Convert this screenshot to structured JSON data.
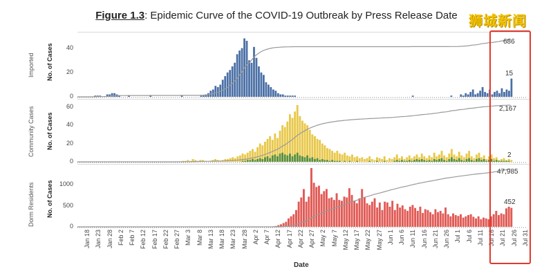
{
  "title": {
    "figure": "Figure 1.3",
    "rest": ": Epidemic Curve of the COVID-19 Outbreak by Press Release Date"
  },
  "watermark": "狮城新闻",
  "xlabel": "Date",
  "x_ticks": [
    "Jan 18",
    "Jan 23",
    "Jan 28",
    "Feb 2",
    "Feb 7",
    "Feb 12",
    "Feb 17",
    "Feb 22",
    "Feb 27",
    "Mar 3",
    "Mar 8",
    "Mar 13",
    "Mar 18",
    "Mar 23",
    "Mar 28",
    "Apr 2",
    "Apr 7",
    "Apr 12",
    "Apr 17",
    "Apr 22",
    "Apr 27",
    "May 2",
    "May 7",
    "May 12",
    "May 17",
    "May 22",
    "May 27",
    "Jun 1",
    "Jun 6",
    "Jun 11",
    "Jun 16",
    "Jun 21",
    "Jun 26",
    "Jul 1",
    "Jul 6",
    "Jul 11",
    "Jul 16",
    "Jul 21",
    "Jul 26",
    "Jul 31"
  ],
  "colors": {
    "imported": "#4a6fa5",
    "community": "#e8c84a",
    "community_linked": "#5b8f3c",
    "dorm": "#e05a55",
    "cumulative": "#999999",
    "highlight": "#e0382c"
  },
  "chart_data": [
    {
      "type": "bar",
      "panel": "Imported",
      "ylabel": "No. of Cases",
      "yticks": [
        0,
        20,
        40
      ],
      "ylim": [
        0,
        50
      ],
      "series": [
        {
          "values_by_day_index": "see x/values"
        }
      ],
      "x_start": "Jan 18",
      "values": [
        0,
        0,
        0,
        0,
        0,
        0,
        0,
        1,
        1,
        1,
        0,
        0,
        2,
        2,
        3,
        3,
        2,
        1,
        0,
        0,
        0,
        1,
        0,
        0,
        0,
        0,
        0,
        0,
        0,
        0,
        1,
        0,
        0,
        0,
        0,
        0,
        0,
        0,
        0,
        0,
        0,
        0,
        0,
        1,
        0,
        0,
        0,
        0,
        0,
        0,
        0,
        1,
        1,
        2,
        3,
        5,
        6,
        9,
        8,
        10,
        14,
        17,
        20,
        22,
        25,
        28,
        35,
        38,
        40,
        48,
        46,
        30,
        28,
        41,
        32,
        25,
        20,
        18,
        12,
        10,
        8,
        6,
        5,
        3,
        2,
        2,
        1,
        1,
        1,
        1,
        1,
        0,
        0,
        0,
        0,
        0,
        0,
        0,
        0,
        0,
        0,
        0,
        0,
        0,
        0,
        0,
        0,
        0,
        0,
        0,
        0,
        0,
        0,
        0,
        0,
        0,
        0,
        0,
        0,
        0,
        0,
        0,
        0,
        0,
        0,
        0,
        0,
        0,
        0,
        0,
        0,
        0,
        0,
        0,
        0,
        0,
        0,
        0,
        0,
        1,
        0,
        0,
        0,
        0,
        0,
        0,
        0,
        0,
        0,
        0,
        0,
        0,
        0,
        0,
        0,
        1,
        0,
        0,
        0,
        2,
        1,
        3,
        2,
        4,
        6,
        2,
        3,
        5,
        8,
        4,
        3,
        6,
        2,
        4,
        5,
        3,
        7,
        4,
        6,
        5,
        15
      ],
      "annotations": [
        {
          "label": "686"
        },
        {
          "label": "15"
        }
      ]
    },
    {
      "type": "bar",
      "panel": "Community Cases",
      "ylabel": "No. of Cases",
      "yticks": [
        0,
        20,
        40,
        60
      ],
      "ylim": [
        0,
        65
      ],
      "series_names": [],
      "unlinked": [
        0,
        0,
        0,
        0,
        0,
        0,
        0,
        0,
        0,
        0,
        0,
        0,
        0,
        0,
        0,
        0,
        0,
        0,
        0,
        0,
        0,
        0,
        0,
        0,
        0,
        0,
        0,
        0,
        0,
        0,
        0,
        0,
        0,
        0,
        0,
        0,
        0,
        0,
        0,
        0,
        0,
        0,
        1,
        1,
        2,
        1,
        3,
        2,
        1,
        2,
        2,
        1,
        0,
        1,
        2,
        3,
        2,
        1,
        2,
        3,
        3,
        4,
        5,
        4,
        6,
        7,
        9,
        8,
        10,
        12,
        14,
        11,
        16,
        20,
        18,
        22,
        25,
        28,
        24,
        31,
        26,
        34,
        40,
        38,
        44,
        52,
        48,
        55,
        62,
        50,
        45,
        42,
        40,
        35,
        30,
        28,
        25,
        24,
        20,
        18,
        15,
        14,
        12,
        10,
        12,
        9,
        8,
        10,
        7,
        6,
        8,
        5,
        6,
        4,
        5,
        3,
        4,
        6,
        3,
        2,
        5,
        4,
        3,
        6,
        2,
        4,
        3,
        5,
        8,
        4,
        6,
        3,
        5,
        7,
        4,
        6,
        8,
        5,
        9,
        6,
        4,
        7,
        5,
        10,
        6,
        8,
        12,
        7,
        5,
        9,
        14,
        8,
        6,
        11,
        7,
        5,
        9,
        12,
        6,
        4,
        8,
        10,
        5,
        7,
        3,
        6,
        8,
        4,
        5,
        2,
        3,
        4,
        2,
        3,
        2
      ],
      "linked": [
        0,
        0,
        0,
        0,
        0,
        0,
        0,
        0,
        0,
        0,
        0,
        0,
        0,
        0,
        0,
        0,
        0,
        0,
        0,
        0,
        0,
        0,
        0,
        0,
        0,
        0,
        0,
        0,
        0,
        0,
        0,
        0,
        0,
        0,
        0,
        0,
        0,
        0,
        0,
        0,
        0,
        0,
        0,
        0,
        0,
        0,
        0,
        0,
        0,
        0,
        0,
        0,
        0,
        0,
        0,
        0,
        0,
        0,
        0,
        0,
        0,
        0,
        0,
        0,
        0,
        0,
        1,
        1,
        2,
        2,
        3,
        2,
        3,
        4,
        3,
        5,
        6,
        4,
        7,
        8,
        6,
        9,
        10,
        8,
        7,
        9,
        6,
        8,
        10,
        7,
        6,
        5,
        7,
        4,
        5,
        3,
        4,
        2,
        3,
        2,
        2,
        1,
        2,
        1,
        1,
        1,
        0,
        1,
        0,
        1,
        0,
        0,
        1,
        0,
        0,
        0,
        0,
        1,
        0,
        0,
        1,
        0,
        0,
        1,
        0,
        0,
        0,
        1,
        2,
        1,
        2,
        1,
        1,
        2,
        1,
        2,
        3,
        2,
        3,
        2,
        1,
        2,
        1,
        3,
        2,
        3,
        4,
        2,
        1,
        3,
        5,
        3,
        2,
        4,
        2,
        1,
        3,
        4,
        2,
        1,
        3,
        4,
        2,
        3,
        1,
        2,
        3,
        1,
        2,
        1,
        1,
        1,
        1,
        1,
        0
      ],
      "annotations": [
        {
          "label": "2,167"
        },
        {
          "label": "2"
        }
      ]
    },
    {
      "type": "bar",
      "panel": "Dorm Residents",
      "ylabel": "No. of Cases",
      "yticks": [
        0,
        500,
        1000
      ],
      "ylim": [
        0,
        1450
      ],
      "values": [
        0,
        0,
        0,
        0,
        0,
        0,
        0,
        0,
        0,
        0,
        0,
        0,
        0,
        0,
        0,
        0,
        0,
        0,
        0,
        0,
        0,
        0,
        0,
        0,
        0,
        0,
        0,
        0,
        0,
        0,
        0,
        0,
        0,
        0,
        0,
        0,
        0,
        0,
        0,
        0,
        0,
        0,
        0,
        0,
        0,
        0,
        0,
        0,
        0,
        0,
        0,
        0,
        0,
        0,
        0,
        0,
        0,
        0,
        0,
        0,
        0,
        0,
        0,
        0,
        0,
        0,
        0,
        0,
        0,
        0,
        0,
        0,
        0,
        0,
        0,
        0,
        0,
        10,
        20,
        40,
        60,
        90,
        120,
        200,
        250,
        300,
        400,
        600,
        700,
        900,
        600,
        720,
        1400,
        1050,
        950,
        980,
        780,
        850,
        900,
        680,
        700,
        640,
        800,
        640,
        620,
        720,
        700,
        920,
        760,
        620,
        560,
        680,
        900,
        700,
        560,
        520,
        600,
        680,
        460,
        580,
        400,
        600,
        580,
        480,
        620,
        400,
        550,
        460,
        510,
        420,
        380,
        480,
        520,
        450,
        380,
        480,
        330,
        420,
        400,
        350,
        300,
        420,
        350,
        380,
        320,
        460,
        300,
        250,
        320,
        280,
        260,
        300,
        220,
        250,
        280,
        300,
        240,
        200,
        250,
        180,
        220,
        200,
        180,
        250,
        300,
        380,
        280,
        320,
        300,
        440,
        480,
        452
      ],
      "annotations": [
        {
          "label": "47,985"
        },
        {
          "label": "452"
        }
      ]
    }
  ]
}
